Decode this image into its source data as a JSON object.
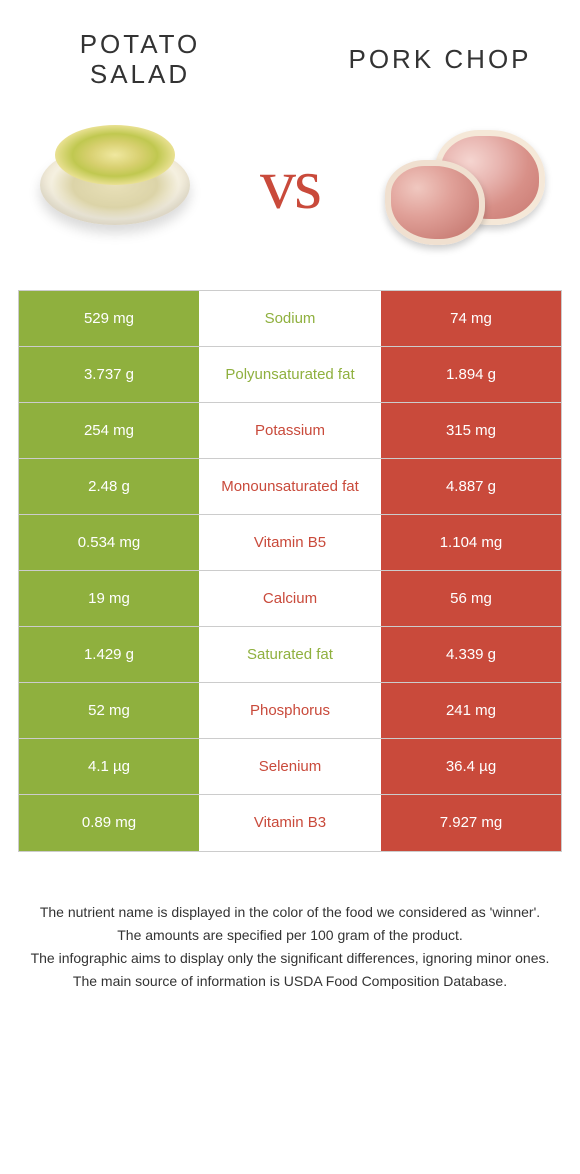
{
  "colors": {
    "left": "#8fb03e",
    "right": "#c94a3b",
    "vs": "#c94a3b",
    "border": "#cccccc",
    "text": "#333333",
    "white": "#ffffff"
  },
  "left_food": {
    "title": "Potato Salad"
  },
  "right_food": {
    "title": "Pork Chop"
  },
  "vs_label": "vs",
  "rows": [
    {
      "nutrient": "Sodium",
      "left": "529 mg",
      "right": "74 mg",
      "winner": "left"
    },
    {
      "nutrient": "Polyunsaturated fat",
      "left": "3.737 g",
      "right": "1.894 g",
      "winner": "left"
    },
    {
      "nutrient": "Potassium",
      "left": "254 mg",
      "right": "315 mg",
      "winner": "right"
    },
    {
      "nutrient": "Monounsaturated fat",
      "left": "2.48 g",
      "right": "4.887 g",
      "winner": "right"
    },
    {
      "nutrient": "Vitamin B5",
      "left": "0.534 mg",
      "right": "1.104 mg",
      "winner": "right"
    },
    {
      "nutrient": "Calcium",
      "left": "19 mg",
      "right": "56 mg",
      "winner": "right"
    },
    {
      "nutrient": "Saturated fat",
      "left": "1.429 g",
      "right": "4.339 g",
      "winner": "left"
    },
    {
      "nutrient": "Phosphorus",
      "left": "52 mg",
      "right": "241 mg",
      "winner": "right"
    },
    {
      "nutrient": "Selenium",
      "left": "4.1 µg",
      "right": "36.4 µg",
      "winner": "right"
    },
    {
      "nutrient": "Vitamin B3",
      "left": "0.89 mg",
      "right": "7.927 mg",
      "winner": "right"
    }
  ],
  "footnotes": [
    "The nutrient name is displayed in the color of the food we considered as 'winner'.",
    "The amounts are specified per 100 gram of the product.",
    "The infographic aims to display only the significant differences, ignoring minor ones.",
    "The main source of information is USDA Food Composition Database."
  ]
}
